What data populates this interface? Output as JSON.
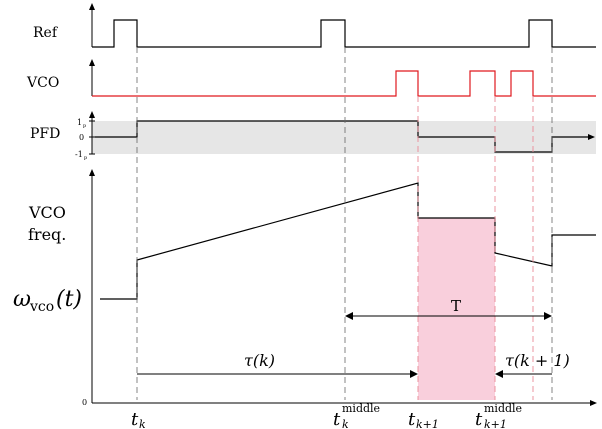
{
  "rows": {
    "ref_label": "Ref",
    "vco_label": "VCO",
    "pfd_label": "PFD",
    "vco_freq_line1": "VCO",
    "vco_freq_line2": "freq."
  },
  "pfd_ticks": {
    "top": "1",
    "top_sub": "p",
    "zero": "0",
    "bottom": "-1",
    "bottom_sub": "p"
  },
  "freq_axis": {
    "zero_tick": "0",
    "omega_main": "ω",
    "omega_sub": "vco",
    "omega_arg": "(t)"
  },
  "times": {
    "t_k_main": "t",
    "t_k_sub": "k",
    "t_k_mid_main": "t",
    "t_k_mid_sub": "k",
    "t_k_mid_sup": "middle",
    "t_k1_main": "t",
    "t_k1_sub": "k+1",
    "t_k1_mid_main": "t",
    "t_k1_mid_sub": "k+1",
    "t_k1_mid_sup": "middle"
  },
  "intervals": {
    "period_label": "T",
    "tau_k": "τ(k)",
    "tau_k1": "τ(k + 1)"
  },
  "colors": {
    "vco_signal": "#e0191f",
    "pfd_band": "#e6e6e6",
    "highlight": "#f9cfdc",
    "dashed_red": "#e98a96"
  }
}
